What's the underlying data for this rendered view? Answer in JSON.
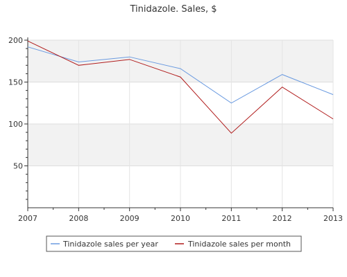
{
  "chart_data": {
    "type": "line",
    "title": "Tinidazole. Sales, $",
    "xlabel": "",
    "ylabel": "",
    "x": [
      "2007",
      "2008",
      "2009",
      "2010",
      "2011",
      "2012",
      "2013"
    ],
    "xlim": [
      2007,
      2013
    ],
    "ylim": [
      0,
      200
    ],
    "yticks": [
      50,
      100,
      150,
      200
    ],
    "grid": true,
    "legend": "bottom",
    "series": [
      {
        "name": "Tinidazole sales per year",
        "color": "#6a9ae0",
        "values": [
          192,
          174,
          180,
          166,
          125,
          159,
          135
        ]
      },
      {
        "name": "Tinidazole sales per month",
        "color": "#b01a1a",
        "values": [
          199,
          170,
          177,
          156,
          89,
          144,
          106
        ]
      }
    ]
  }
}
